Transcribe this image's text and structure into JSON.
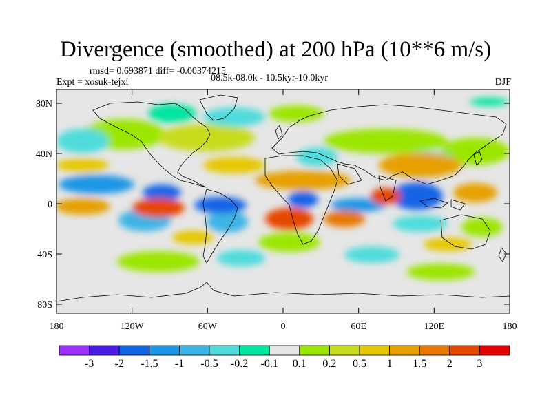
{
  "title": "Divergence (smoothed) at 200 hPa (10**6 m/s)",
  "stats_text": "rmsd= 0.693871 diff= -0.00374215",
  "experiment": "Expt = xosuk-tejxi",
  "period": "08.5k-08.0k - 10.5kyr-10.0kyr",
  "season": "DJF",
  "lon_ticks": [
    "180",
    "120W",
    "60W",
    "0",
    "60E",
    "120E",
    "180"
  ],
  "lat_ticks": [
    "80N",
    "40N",
    "0",
    "40S",
    "80S"
  ],
  "colorbar": {
    "labels": [
      "-3",
      "-2",
      "-1.5",
      "-1",
      "-0.5",
      "-0.2",
      "-0.1",
      "0.1",
      "0.2",
      "0.5",
      "1",
      "1.5",
      "2",
      "3"
    ],
    "colors": [
      "#9b30ff",
      "#4a1de6",
      "#1464e6",
      "#1e96e6",
      "#3cb4e6",
      "#50dcdc",
      "#00e6a0",
      "#e6e6e6",
      "#9be600",
      "#c8dc1e",
      "#e6c800",
      "#e6a000",
      "#e67800",
      "#e64600",
      "#e60000"
    ]
  },
  "map_background": "#e6e6e6"
}
